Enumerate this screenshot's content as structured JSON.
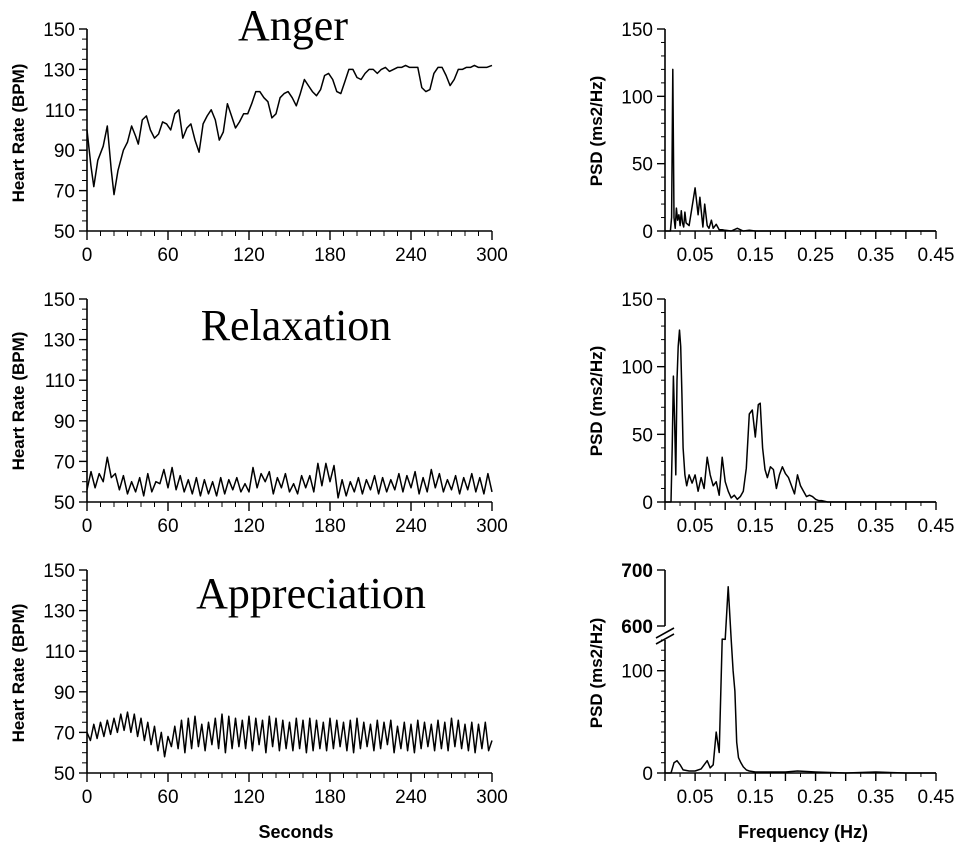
{
  "chart_data": [
    {
      "type": "line",
      "title": "Anger",
      "xlabel": "",
      "ylabel": "Heart Rate (BPM)",
      "xlim": [
        0,
        300
      ],
      "ylim": [
        50,
        150
      ],
      "xticks": [
        "0",
        "60",
        "120",
        "180",
        "240",
        "300"
      ],
      "yticks": [
        "50",
        "70",
        "90",
        "110",
        "130",
        "150"
      ],
      "x": [
        0,
        3,
        5,
        8,
        12,
        15,
        18,
        20,
        23,
        27,
        30,
        33,
        36,
        38,
        41,
        44,
        47,
        50,
        53,
        56,
        59,
        62,
        65,
        68,
        71,
        74,
        77,
        80,
        83,
        86,
        89,
        92,
        95,
        98,
        101,
        104,
        107,
        110,
        113,
        116,
        119,
        122,
        125,
        128,
        131,
        134,
        137,
        140,
        143,
        146,
        149,
        152,
        155,
        158,
        161,
        164,
        167,
        170,
        173,
        176,
        179,
        182,
        185,
        188,
        191,
        194,
        197,
        200,
        203,
        206,
        209,
        212,
        215,
        218,
        221,
        224,
        227,
        230,
        233,
        236,
        239,
        242,
        245,
        248,
        251,
        254,
        257,
        260,
        263,
        266,
        269,
        272,
        275,
        278,
        281,
        284,
        287,
        290,
        293,
        296,
        300
      ],
      "values": [
        100,
        82,
        72,
        85,
        92,
        102,
        80,
        68,
        80,
        90,
        94,
        102,
        97,
        93,
        105,
        107,
        100,
        96,
        98,
        104,
        103,
        100,
        108,
        110,
        96,
        101,
        103,
        95,
        89,
        103,
        107,
        110,
        105,
        95,
        99,
        113,
        107,
        101,
        104,
        108,
        108,
        113,
        119,
        119,
        116,
        114,
        106,
        108,
        116,
        118,
        119,
        116,
        112,
        118,
        125,
        122,
        119,
        117,
        120,
        127,
        128,
        125,
        119,
        118,
        124,
        130,
        130,
        126,
        125,
        128,
        130,
        130,
        128,
        130,
        131,
        129,
        130,
        131,
        131,
        132,
        131,
        131,
        131,
        121,
        119,
        120,
        128,
        131,
        131,
        127,
        122,
        125,
        130,
        130,
        131,
        131,
        132,
        131,
        131,
        131,
        132
      ]
    },
    {
      "type": "line",
      "title": "Relaxation",
      "xlabel": "",
      "ylabel": "Heart Rate (BPM)",
      "xlim": [
        0,
        300
      ],
      "ylim": [
        50,
        150
      ],
      "xticks": [
        "0",
        "60",
        "120",
        "180",
        "240",
        "300"
      ],
      "yticks": [
        "50",
        "70",
        "90",
        "110",
        "130",
        "150"
      ],
      "x": [
        0,
        3,
        6,
        9,
        12,
        15,
        18,
        21,
        24,
        27,
        30,
        33,
        36,
        39,
        42,
        45,
        48,
        51,
        54,
        57,
        60,
        63,
        66,
        69,
        72,
        75,
        78,
        81,
        84,
        87,
        90,
        93,
        96,
        99,
        102,
        105,
        108,
        111,
        114,
        117,
        120,
        123,
        126,
        129,
        132,
        135,
        138,
        141,
        144,
        147,
        150,
        153,
        156,
        159,
        162,
        165,
        168,
        171,
        174,
        177,
        180,
        183,
        186,
        189,
        192,
        195,
        198,
        201,
        204,
        207,
        210,
        213,
        216,
        219,
        222,
        225,
        228,
        231,
        234,
        237,
        240,
        243,
        246,
        249,
        252,
        255,
        258,
        261,
        264,
        267,
        270,
        273,
        276,
        279,
        282,
        285,
        288,
        291,
        294,
        297,
        300
      ],
      "values": [
        56,
        65,
        57,
        64,
        60,
        72,
        62,
        64,
        56,
        63,
        54,
        60,
        55,
        62,
        53,
        64,
        55,
        60,
        59,
        66,
        57,
        67,
        56,
        63,
        55,
        61,
        54,
        62,
        53,
        61,
        54,
        60,
        53,
        62,
        54,
        61,
        56,
        62,
        55,
        59,
        55,
        67,
        57,
        64,
        60,
        65,
        54,
        62,
        57,
        64,
        55,
        59,
        54,
        63,
        57,
        63,
        55,
        69,
        58,
        69,
        60,
        68,
        52,
        61,
        53,
        60,
        55,
        62,
        54,
        61,
        56,
        63,
        54,
        62,
        55,
        61,
        56,
        64,
        55,
        63,
        57,
        65,
        54,
        62,
        55,
        66,
        57,
        64,
        55,
        61,
        56,
        63,
        54,
        62,
        56,
        64,
        55,
        62,
        54,
        64,
        55
      ]
    },
    {
      "type": "line",
      "title": "Appreciation",
      "xlabel": "Seconds",
      "ylabel": "Heart Rate (BPM)",
      "xlim": [
        0,
        300
      ],
      "ylim": [
        50,
        150
      ],
      "xticks": [
        "0",
        "60",
        "120",
        "180",
        "240",
        "300"
      ],
      "yticks": [
        "50",
        "70",
        "90",
        "110",
        "130",
        "150"
      ],
      "x": [
        0,
        2.5,
        5,
        7.5,
        10,
        12.5,
        15,
        17.5,
        20,
        22.5,
        25,
        27.5,
        30,
        32.5,
        35,
        37.5,
        40,
        42.5,
        45,
        47.5,
        50,
        52.5,
        55,
        57.5,
        60,
        62.5,
        65,
        67.5,
        70,
        72.5,
        75,
        77.5,
        80,
        82.5,
        85,
        87.5,
        90,
        92.5,
        95,
        97.5,
        100,
        102.5,
        105,
        107.5,
        110,
        112.5,
        115,
        117.5,
        120,
        122.5,
        125,
        127.5,
        130,
        132.5,
        135,
        137.5,
        140,
        142.5,
        145,
        147.5,
        150,
        152.5,
        155,
        157.5,
        160,
        162.5,
        165,
        167.5,
        170,
        172.5,
        175,
        177.5,
        180,
        182.5,
        185,
        187.5,
        190,
        192.5,
        195,
        197.5,
        200,
        202.5,
        205,
        207.5,
        210,
        212.5,
        215,
        217.5,
        220,
        222.5,
        225,
        227.5,
        230,
        232.5,
        235,
        237.5,
        240,
        242.5,
        245,
        247.5,
        250,
        252.5,
        255,
        257.5,
        260,
        262.5,
        265,
        267.5,
        270,
        272.5,
        275,
        277.5,
        280,
        282.5,
        285,
        287.5,
        290,
        292.5,
        295,
        297.5,
        300
      ],
      "values": [
        70,
        66,
        74,
        67,
        75,
        68,
        76,
        69,
        77,
        70,
        79,
        71,
        80,
        70,
        79,
        68,
        77,
        66,
        75,
        64,
        73,
        61,
        70,
        58,
        68,
        63,
        73,
        62,
        76,
        60,
        77,
        62,
        78,
        63,
        74,
        61,
        75,
        64,
        77,
        62,
        79,
        60,
        78,
        62,
        77,
        63,
        76,
        62,
        78,
        61,
        77,
        64,
        76,
        60,
        78,
        63,
        77,
        61,
        76,
        62,
        75,
        61,
        77,
        62,
        76,
        60,
        77,
        61,
        76,
        62,
        75,
        61,
        77,
        62,
        76,
        63,
        75,
        61,
        76,
        60,
        77,
        62,
        75,
        63,
        74,
        61,
        76,
        62,
        75,
        64,
        76,
        60,
        73,
        62,
        75,
        61,
        74,
        60,
        76,
        62,
        75,
        63,
        74,
        61,
        76,
        62,
        75,
        61,
        77,
        63,
        76,
        62,
        74,
        61,
        75,
        60,
        74,
        62,
        75,
        61,
        66
      ]
    },
    {
      "type": "line",
      "title": "",
      "xlabel": "",
      "ylabel": "PSD (ms2/Hz)",
      "xlim": [
        0,
        0.45
      ],
      "ylim": [
        0,
        150
      ],
      "xticks": [
        "0.05",
        "0.15",
        "0.25",
        "0.35",
        "0.45"
      ],
      "yticks": [
        "0",
        "50",
        "100",
        "150"
      ],
      "x": [
        0.0,
        0.005,
        0.009,
        0.011,
        0.013,
        0.015,
        0.017,
        0.019,
        0.021,
        0.023,
        0.025,
        0.027,
        0.029,
        0.031,
        0.033,
        0.035,
        0.04,
        0.045,
        0.05,
        0.055,
        0.058,
        0.06,
        0.063,
        0.066,
        0.07,
        0.073,
        0.077,
        0.08,
        0.085,
        0.09,
        0.095,
        0.1,
        0.11,
        0.12,
        0.13,
        0.14,
        0.15,
        0.18,
        0.22,
        0.3,
        0.4,
        0.45
      ],
      "values": [
        0,
        0,
        0,
        10,
        120,
        10,
        2,
        17,
        8,
        12,
        4,
        15,
        6,
        3,
        14,
        6,
        4,
        18,
        32,
        12,
        25,
        16,
        3,
        20,
        4,
        2,
        8,
        2,
        5,
        1,
        1,
        0.5,
        0,
        2,
        0,
        0.5,
        0,
        0,
        0,
        0,
        0,
        0
      ]
    },
    {
      "type": "line",
      "title": "",
      "xlabel": "",
      "ylabel": "PSD (ms2/Hz)",
      "xlim": [
        0,
        0.45
      ],
      "ylim": [
        0,
        150
      ],
      "xticks": [
        "0.05",
        "0.15",
        "0.25",
        "0.35",
        "0.45"
      ],
      "yticks": [
        "0",
        "50",
        "100",
        "150"
      ],
      "x": [
        0.0,
        0.008,
        0.01,
        0.012,
        0.014,
        0.016,
        0.018,
        0.02,
        0.022,
        0.024,
        0.026,
        0.028,
        0.03,
        0.033,
        0.036,
        0.04,
        0.045,
        0.05,
        0.055,
        0.06,
        0.065,
        0.07,
        0.075,
        0.08,
        0.085,
        0.09,
        0.095,
        0.1,
        0.105,
        0.11,
        0.115,
        0.12,
        0.125,
        0.13,
        0.135,
        0.14,
        0.145,
        0.15,
        0.155,
        0.158,
        0.162,
        0.166,
        0.17,
        0.175,
        0.18,
        0.185,
        0.19,
        0.195,
        0.2,
        0.205,
        0.21,
        0.215,
        0.22,
        0.225,
        0.23,
        0.235,
        0.24,
        0.245,
        0.25,
        0.255,
        0.26,
        0.27,
        0.3,
        0.35,
        0.4,
        0.45
      ],
      "values": [
        0,
        0,
        0,
        40,
        93,
        60,
        20,
        90,
        115,
        127,
        115,
        80,
        40,
        20,
        12,
        20,
        14,
        20,
        8,
        18,
        10,
        33,
        20,
        12,
        15,
        5,
        33,
        15,
        8,
        3,
        5,
        2,
        4,
        8,
        25,
        65,
        68,
        48,
        72,
        73,
        40,
        24,
        18,
        26,
        24,
        10,
        20,
        26,
        21,
        18,
        12,
        6,
        20,
        12,
        8,
        4,
        5,
        4,
        2,
        1,
        1,
        0,
        0,
        0,
        0,
        0
      ]
    },
    {
      "type": "line",
      "title": "",
      "xlabel": "Frequency  (Hz)",
      "ylabel": "PSD (ms2/Hz)",
      "xlim": [
        0,
        0.45
      ],
      "ylim": [
        0,
        700
      ],
      "axis_break": [
        130,
        590
      ],
      "xticks": [
        "0.05",
        "0.15",
        "0.25",
        "0.35",
        "0.45"
      ],
      "yticks": [
        "0",
        "100",
        "600",
        "700"
      ],
      "x": [
        0.0,
        0.01,
        0.015,
        0.02,
        0.025,
        0.03,
        0.04,
        0.05,
        0.06,
        0.07,
        0.075,
        0.08,
        0.085,
        0.09,
        0.095,
        0.1,
        0.105,
        0.11,
        0.113,
        0.116,
        0.119,
        0.122,
        0.126,
        0.13,
        0.135,
        0.14,
        0.15,
        0.2,
        0.22,
        0.25,
        0.3,
        0.35,
        0.4,
        0.45
      ],
      "values": [
        0,
        0,
        10,
        12,
        8,
        3,
        2,
        2,
        4,
        12,
        5,
        8,
        40,
        20,
        160,
        150,
        670,
        140,
        100,
        80,
        30,
        15,
        10,
        6,
        3,
        2,
        1,
        1,
        2,
        1,
        0,
        1,
        0,
        0
      ]
    }
  ]
}
